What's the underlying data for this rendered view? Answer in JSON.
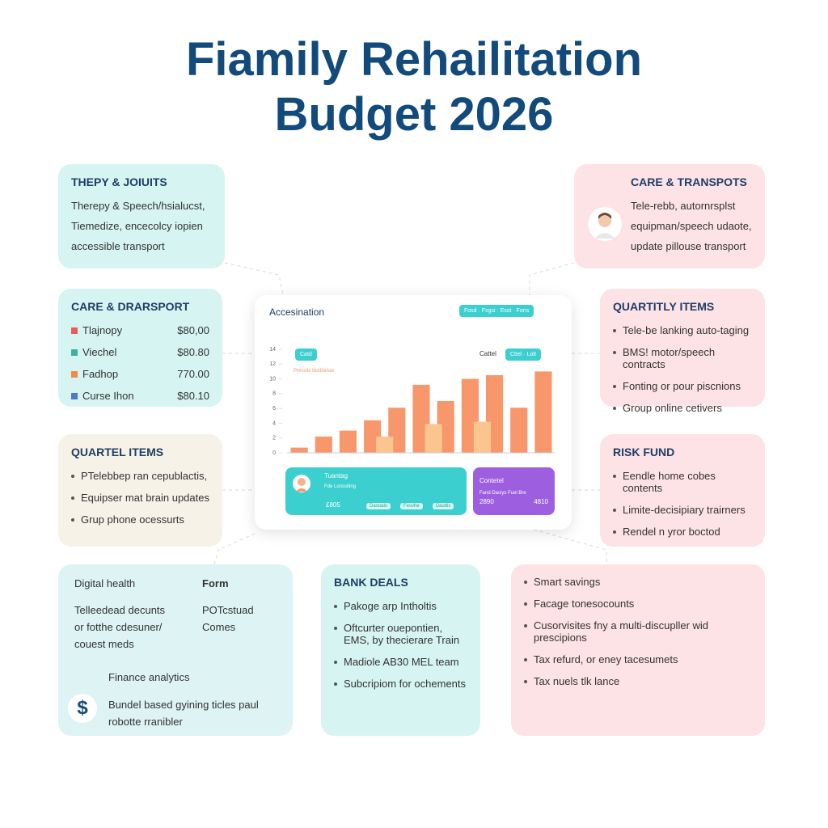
{
  "title": "Fiamily Rehailitation Budget 2026",
  "cards": [
    {
      "title": "THEPY & JOIUITS",
      "lines": [
        "Therepy & Speech/hsialucst,",
        "Tiemedize, encecolcy iopien",
        "accessible transport"
      ]
    },
    {
      "title": "CARE & TRANSPOTS",
      "lines": [
        "Tele-rebb, autornrsplst",
        "equipman/speech udaote,",
        "update pillouse transport"
      ]
    },
    {
      "title": "CARE & DRARSPORT",
      "rows": [
        [
          "Tlajnopy",
          "$80,00"
        ],
        [
          "Viechel",
          "$80.80"
        ],
        [
          "Fadhop",
          "770.00"
        ],
        [
          "Curse Ihon",
          "$80.10"
        ]
      ]
    },
    {
      "title": "QUARTITLY ITEMS",
      "bullets": [
        "Tele-be lanking auto-taging",
        "BMS! motor/speech contracts",
        "Fonting or pour piscnions",
        "Group online cetivers"
      ]
    },
    {
      "title": "QUARTEL ITEMS",
      "bullets": [
        "PTelebbep ran cepublactis,",
        "Equipser mat brain updates",
        "Grup phone ocessurts"
      ]
    },
    {
      "title": "RISK FUND",
      "bullets": [
        "Eendle home cobes contents",
        "Limite-decisipiary trairners",
        "Rendel n yror boctod"
      ]
    },
    {
      "title": "BANK DEALS",
      "bullets": [
        "Pakoge arp Intholtis",
        "Oftcurter ouepontien, EMS, by thecierare Train",
        "Madiole AB30 MEL team",
        "Subcripiom for ochements"
      ]
    },
    {
      "bullets": [
        "Smart savings",
        "Facage tonesocounts",
        "Cusorvisites fny a multi-discupller wid prescipions",
        "Tax refurd, or eney tacesumets",
        "Tax nuels tlk lance"
      ]
    }
  ],
  "finance": {
    "title": "Digital health",
    "lines": [
      "Telleedead decunts",
      "or fotthe cdesuner/",
      "couest meds"
    ],
    "side_title": "Form",
    "side_lines": [
      "POTcstuad",
      "Comes"
    ],
    "sub_title": "Finance analytics",
    "icon": "$",
    "sub_lines": [
      "Bundel based gyining ticles paul",
      "robotte rranibler"
    ]
  },
  "dashboard": {
    "title": "Accesination",
    "filter": "Fosd · Fsgsi · Esst · Fons",
    "tab": "Catd",
    "tab2": "Cattel",
    "tab3": "Cttel · Lolt",
    "legend_title": "Prevsits Ibstblenas",
    "card1": {
      "title": "Tuantag",
      "caption": "Fde Lonssiting",
      "value": "£805",
      "chips": [
        "Dastads",
        "Fesvhe",
        "Dauttis"
      ]
    },
    "card2": {
      "title": "Contetel",
      "caption": "Fand Daciys Fuel Bre",
      "values": [
        "2890",
        "4810"
      ]
    },
    "chart": {
      "type": "bar",
      "categories": [
        null,
        null,
        null,
        null,
        null,
        null,
        null,
        null,
        null,
        null,
        null
      ],
      "series": [
        {
          "color": "#f7976b",
          "values": [
            0.7,
            2.2,
            3,
            4.4,
            6.1,
            9.2,
            7,
            10,
            10.5,
            6.1,
            11
          ]
        },
        {
          "color": "#fbc58f",
          "values": [
            null,
            null,
            null,
            2.2,
            null,
            3.9,
            null,
            4.2,
            null,
            null,
            null
          ]
        }
      ],
      "ylim": [
        0,
        14
      ],
      "yticks": [
        0,
        2,
        4,
        6,
        8,
        10,
        12,
        14
      ]
    }
  }
}
